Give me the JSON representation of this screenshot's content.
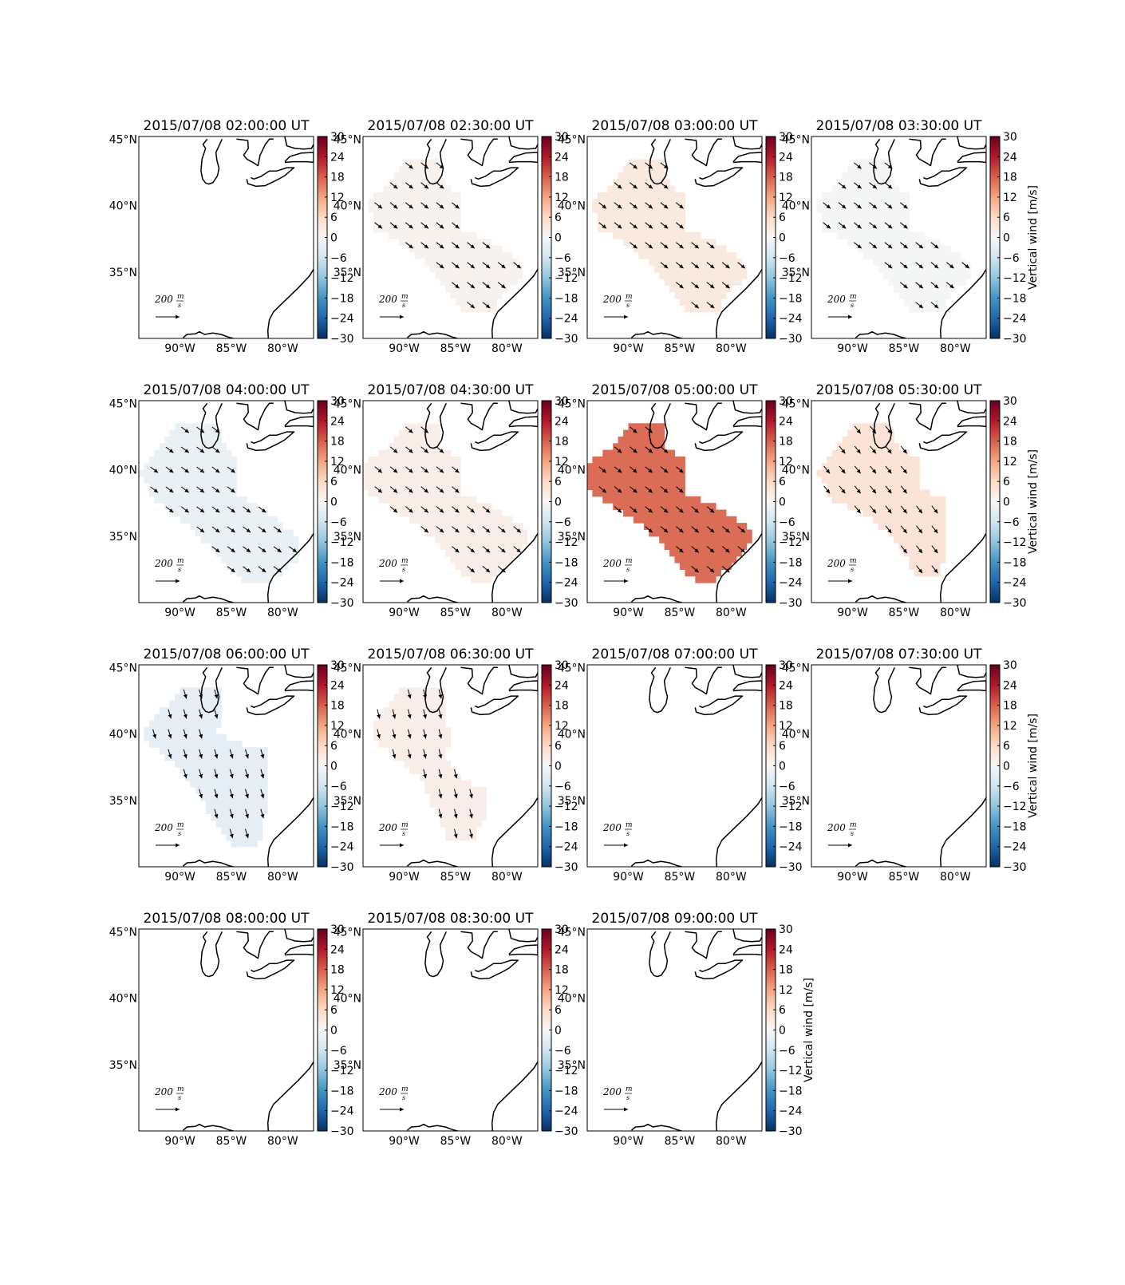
{
  "figure": {
    "colorbar": {
      "label": "Vertical wind [m/s]",
      "ticks": [
        30,
        24,
        18,
        12,
        6,
        0,
        -6,
        -12,
        -18,
        -24,
        -30
      ],
      "range": [
        -30,
        30
      ],
      "cmap_stops": [
        "#053061",
        "#2166ac",
        "#4393c3",
        "#92c5de",
        "#d1e5f0",
        "#f7f7f7",
        "#fddbc7",
        "#f4a582",
        "#d6604d",
        "#b2182b",
        "#67001f"
      ]
    },
    "map": {
      "lat_ticks": [
        "45°N",
        "40°N",
        "35°N"
      ],
      "lon_ticks": [
        "90°W",
        "85°W",
        "80°W"
      ],
      "lat_values": [
        45,
        40,
        35
      ],
      "lon_values": [
        -90,
        -85,
        -80
      ],
      "extent": {
        "lon_min": -94,
        "lon_max": -77,
        "lat_min": 30,
        "lat_max": 45.2
      }
    },
    "quiver_key": {
      "value": "200",
      "unit_num": "m",
      "unit_den": "s"
    }
  },
  "chart_data": [
    {
      "type": "heatmap",
      "title": "2015/07/08 02:00:00 UT",
      "vertical_wind_ms": null,
      "region": "none",
      "arrow_dir": [
        1,
        1
      ]
    },
    {
      "type": "heatmap",
      "title": "2015/07/08 02:30:00 UT",
      "vertical_wind_ms": 1,
      "region": "A",
      "arrow_dir": [
        1,
        0.8
      ]
    },
    {
      "type": "heatmap",
      "title": "2015/07/08 03:00:00 UT",
      "vertical_wind_ms": 3,
      "region": "A",
      "arrow_dir": [
        1,
        0.8
      ]
    },
    {
      "type": "heatmap",
      "title": "2015/07/08 03:30:00 UT",
      "vertical_wind_ms": -0.5,
      "region": "A",
      "arrow_dir": [
        1,
        0.8
      ]
    },
    {
      "type": "heatmap",
      "title": "2015/07/08 04:00:00 UT",
      "vertical_wind_ms": -2,
      "region": "B",
      "arrow_dir": [
        1,
        0.75
      ]
    },
    {
      "type": "heatmap",
      "title": "2015/07/08 04:30:00 UT",
      "vertical_wind_ms": 2,
      "region": "C",
      "arrow_dir": [
        1,
        0.85
      ]
    },
    {
      "type": "heatmap",
      "title": "2015/07/08 05:00:00 UT",
      "vertical_wind_ms": 17,
      "region": "C",
      "arrow_dir": [
        1,
        0.85
      ]
    },
    {
      "type": "heatmap",
      "title": "2015/07/08 05:30:00 UT",
      "vertical_wind_ms": 4,
      "region": "D",
      "arrow_dir": [
        0.8,
        1
      ]
    },
    {
      "type": "heatmap",
      "title": "2015/07/08 06:00:00 UT",
      "vertical_wind_ms": -3,
      "region": "E",
      "arrow_dir": [
        0.3,
        1
      ]
    },
    {
      "type": "heatmap",
      "title": "2015/07/08 06:30:00 UT",
      "vertical_wind_ms": 2,
      "region": "F",
      "arrow_dir": [
        0.25,
        1
      ]
    },
    {
      "type": "heatmap",
      "title": "2015/07/08 07:00:00 UT",
      "vertical_wind_ms": null,
      "region": "none",
      "arrow_dir": [
        1,
        1
      ]
    },
    {
      "type": "heatmap",
      "title": "2015/07/08 07:30:00 UT",
      "vertical_wind_ms": null,
      "region": "none",
      "arrow_dir": [
        1,
        1
      ]
    },
    {
      "type": "heatmap",
      "title": "2015/07/08 08:00:00 UT",
      "vertical_wind_ms": null,
      "region": "none",
      "arrow_dir": [
        1,
        1
      ]
    },
    {
      "type": "heatmap",
      "title": "2015/07/08 08:30:00 UT",
      "vertical_wind_ms": null,
      "region": "none",
      "arrow_dir": [
        1,
        1
      ]
    },
    {
      "type": "heatmap",
      "title": "2015/07/08 09:00:00 UT",
      "vertical_wind_ms": null,
      "region": "none",
      "arrow_dir": [
        1,
        1
      ]
    }
  ]
}
